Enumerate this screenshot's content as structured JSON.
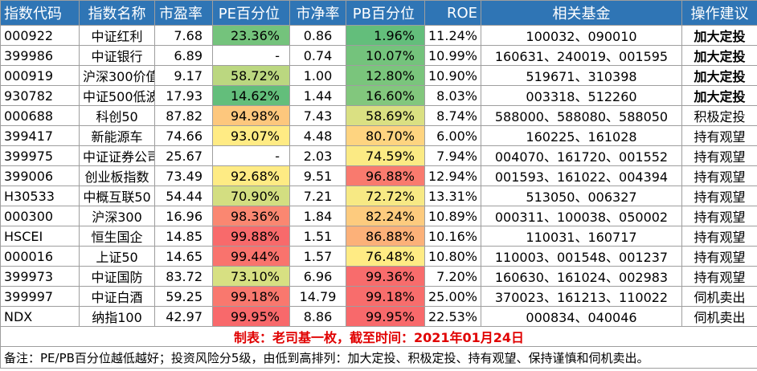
{
  "table": {
    "header": [
      "指数代码",
      "指数名称",
      "市盈率",
      "PE百分位",
      "市净率",
      "PB百分位",
      "ROE",
      "相关基金",
      "操作建议"
    ],
    "rows": [
      [
        "000922",
        "中证红利",
        "7.68",
        "23.36%",
        "0.86",
        "1.96%",
        "11.24%",
        "100032、090010",
        "加大定投"
      ],
      [
        "399986",
        "中证银行",
        "6.89",
        "-",
        "0.74",
        "10.07%",
        "10.99%",
        "160631、240019、001595",
        "加大定投"
      ],
      [
        "000919",
        "沪深300价值",
        "9.17",
        "58.72%",
        "1.00",
        "12.80%",
        "10.90%",
        "519671、310398",
        "加大定投"
      ],
      [
        "930782",
        "中证500低波",
        "17.93",
        "14.62%",
        "1.44",
        "16.60%",
        "8.03%",
        "003318、512260",
        "加大定投"
      ],
      [
        "000688",
        "科创50",
        "87.82",
        "94.98%",
        "7.43",
        "58.69%",
        "8.74%",
        "588000、588080、588050",
        "积极定投"
      ],
      [
        "399417",
        "新能源车",
        "74.66",
        "93.07%",
        "4.48",
        "80.70%",
        "6.00%",
        "160225、161028",
        "持有观望"
      ],
      [
        "399975",
        "中证证券公司",
        "25.67",
        "-",
        "2.03",
        "74.59%",
        "7.94%",
        "004070、161720、001552",
        "持有观望"
      ],
      [
        "399006",
        "创业板指数",
        "73.49",
        "92.68%",
        "9.51",
        "96.88%",
        "12.94%",
        "001593、161022、004394",
        "持有观望"
      ],
      [
        "H30533",
        "中概互联50",
        "54.44",
        "70.90%",
        "7.21",
        "72.72%",
        "13.31%",
        "513050、006327",
        "持有观望"
      ],
      [
        "000300",
        "沪深300",
        "16.96",
        "98.36%",
        "1.84",
        "82.24%",
        "10.89%",
        "000311、100038、050002",
        "持有观望"
      ],
      [
        "HSCEI",
        "恒生国企",
        "14.85",
        "99.88%",
        "1.51",
        "86.88%",
        "10.16%",
        "110031、160717",
        "持有观望"
      ],
      [
        "000016",
        "上证50",
        "14.65",
        "99.44%",
        "1.57",
        "76.48%",
        "10.80%",
        "110003、001548、001237",
        "持有观望"
      ],
      [
        "399973",
        "中证国防",
        "83.72",
        "73.10%",
        "6.96",
        "99.36%",
        "7.20%",
        "160630、161024、002983",
        "持有观望"
      ],
      [
        "399997",
        "中证白酒",
        "59.25",
        "99.18%",
        "14.79",
        "99.18%",
        "25.00%",
        "370023、161213、110022",
        "伺机卖出"
      ],
      [
        "NDX",
        "纳指100",
        "42.97",
        "99.95%",
        "8.86",
        "99.95%",
        "22.53%",
        "000834、040046",
        "伺机卖出"
      ]
    ],
    "caption": "制表：老司基一枚，截至时间：2021年01月24日",
    "note": "备注：PE/PB百分位越低越好；投资风险分5级，由低到高排列：加大定投、积极定投、持有观望、保持谨慎和伺机卖出。"
  }
}
